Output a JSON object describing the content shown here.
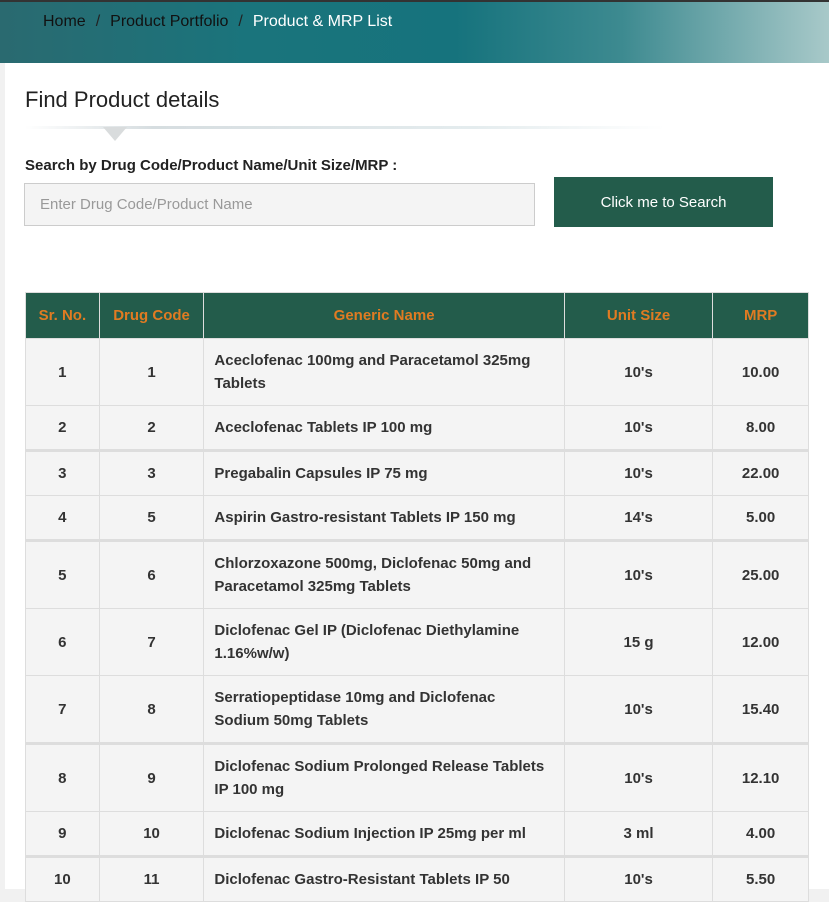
{
  "breadcrumb": {
    "items": [
      "Home",
      "Product Portfolio"
    ],
    "current": "Product & MRP List",
    "separator": "/"
  },
  "page_title": "Find Product details",
  "search": {
    "label": "Search by Drug Code/Product Name/Unit Size/MRP :",
    "placeholder": "Enter Drug Code/Product Name",
    "value": "",
    "button_label": "Click me to Search"
  },
  "colors": {
    "header_bg": "#235c4b",
    "header_text": "#e07b22",
    "button_bg": "#235c4b"
  },
  "table": {
    "columns": [
      "Sr. No.",
      "Drug Code",
      "Generic Name",
      "Unit Size",
      "MRP"
    ],
    "rows": [
      {
        "sr": "1",
        "code": "1",
        "name": "Aceclofenac 100mg and Paracetamol 325mg Tablets",
        "unit": "10's",
        "mrp": "10.00"
      },
      {
        "sr": "2",
        "code": "2",
        "name": "Aceclofenac Tablets IP 100 mg",
        "unit": "10's",
        "mrp": "8.00"
      },
      {
        "sr": "3",
        "code": "3",
        "name": "Pregabalin Capsules IP 75 mg",
        "unit": "10's",
        "mrp": "22.00"
      },
      {
        "sr": "4",
        "code": "5",
        "name": "Aspirin Gastro-resistant Tablets IP 150 mg",
        "unit": "14's",
        "mrp": "5.00"
      },
      {
        "sr": "5",
        "code": "6",
        "name": "Chlorzoxazone 500mg, Diclofenac 50mg and Paracetamol 325mg Tablets",
        "unit": "10's",
        "mrp": "25.00"
      },
      {
        "sr": "6",
        "code": "7",
        "name": "Diclofenac Gel IP (Diclofenac Diethylamine 1.16%w/w)",
        "unit": "15 g",
        "mrp": "12.00"
      },
      {
        "sr": "7",
        "code": "8",
        "name": "Serratiopeptidase 10mg and Diclofenac Sodium 50mg Tablets",
        "unit": "10's",
        "mrp": "15.40"
      },
      {
        "sr": "8",
        "code": "9",
        "name": "Diclofenac Sodium Prolonged Release Tablets IP 100 mg",
        "unit": "10's",
        "mrp": "12.10"
      },
      {
        "sr": "9",
        "code": "10",
        "name": "Diclofenac Sodium Injection IP 25mg per ml",
        "unit": "3 ml",
        "mrp": "4.00"
      },
      {
        "sr": "10",
        "code": "11",
        "name": "Diclofenac Gastro-Resistant Tablets IP 50",
        "unit": "10's",
        "mrp": "5.50"
      }
    ]
  }
}
